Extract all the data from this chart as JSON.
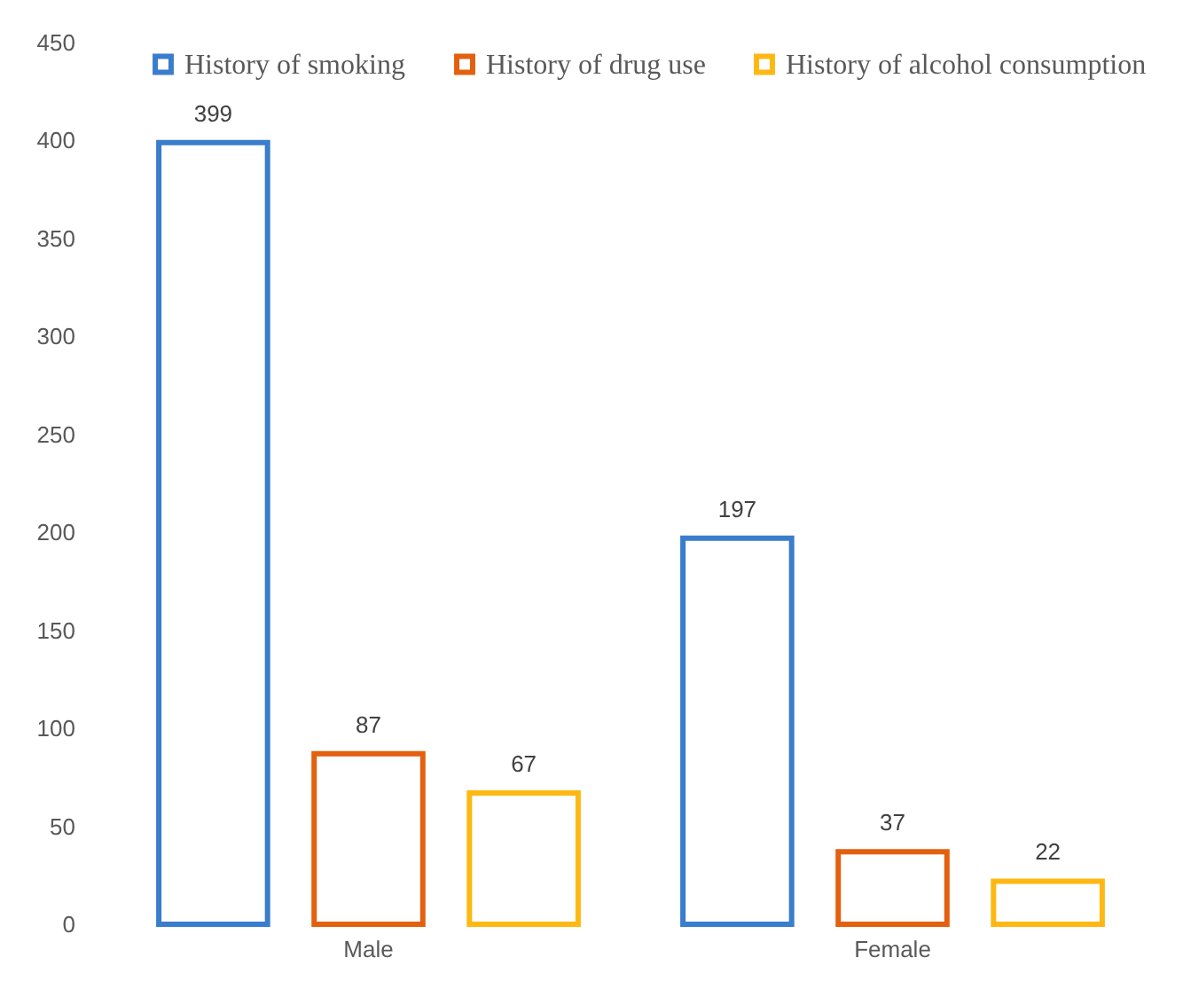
{
  "chart_data": {
    "type": "bar",
    "categories": [
      "Male",
      "Female"
    ],
    "series": [
      {
        "name": "History of smoking",
        "color": "#3a7dcc",
        "values": [
          399,
          197
        ]
      },
      {
        "name": "History of drug use",
        "color": "#e3600f",
        "values": [
          87,
          37
        ]
      },
      {
        "name": "History of alcohol consumption",
        "color": "#fdb813",
        "values": [
          67,
          22
        ]
      }
    ],
    "ylim": [
      0,
      450
    ],
    "yticks": [
      0,
      50,
      100,
      150,
      200,
      250,
      300,
      350,
      400,
      450
    ],
    "data_labels": true,
    "legend": "top right",
    "grid": false
  }
}
